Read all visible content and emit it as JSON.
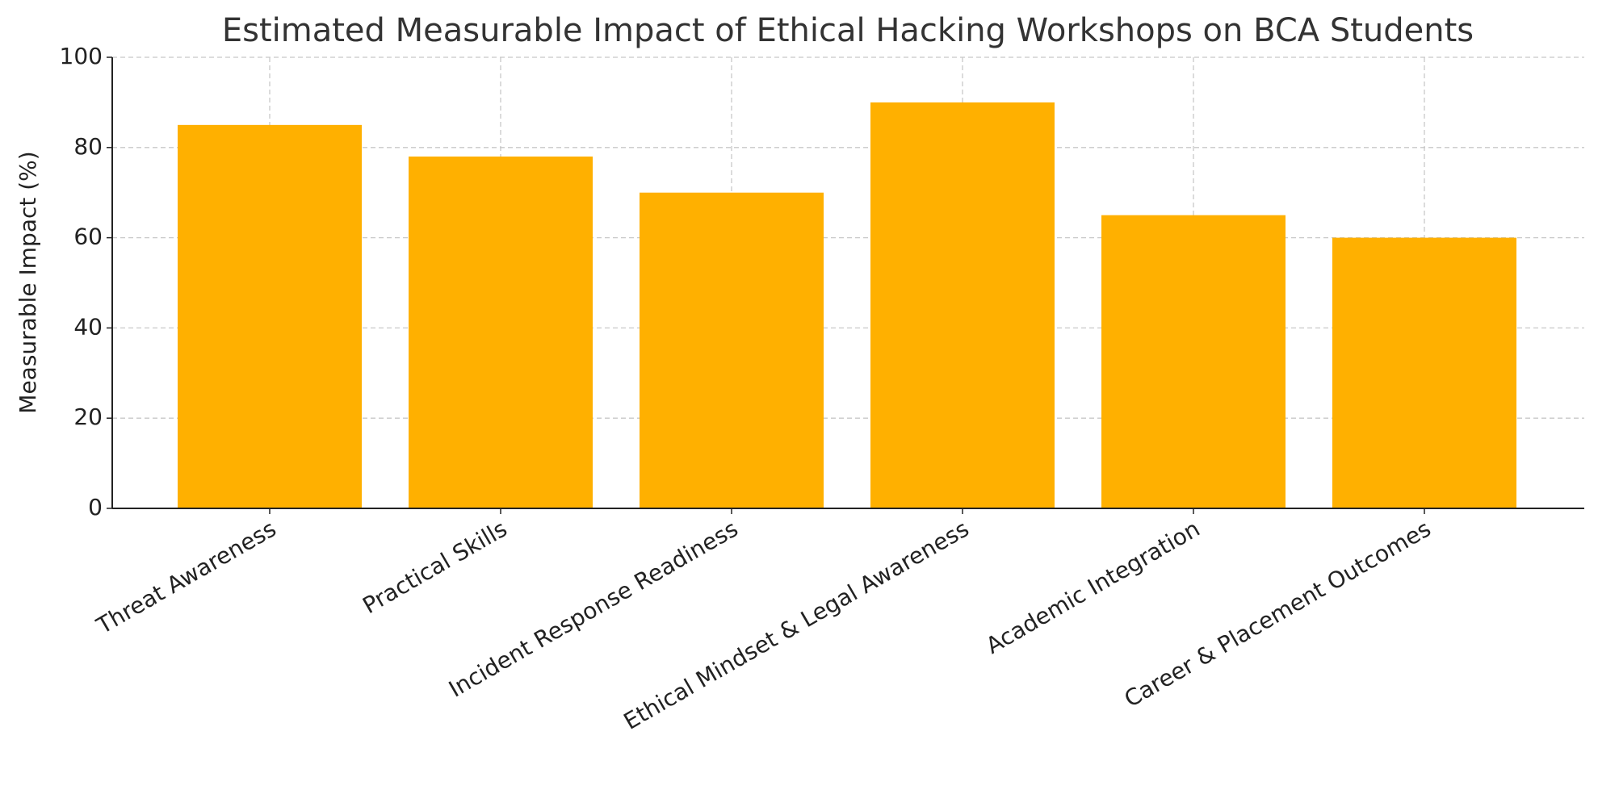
{
  "chart_data": {
    "type": "bar",
    "title": "Estimated Measurable Impact of Ethical Hacking Workshops on BCA Students",
    "y_label": "Measurable Impact (%)",
    "categories": [
      "Threat Awareness",
      "Practical Skills",
      "Incident Response Readiness",
      "Ethical Mindset & Legal Awareness",
      "Academic Integration",
      "Career & Placement Outcomes"
    ],
    "values": [
      85,
      78,
      70,
      90,
      65,
      60
    ],
    "color": "#ffb000",
    "ylim": [
      0,
      100
    ],
    "yticks": [
      0,
      20,
      40,
      60,
      80,
      100
    ],
    "grid": true
  }
}
